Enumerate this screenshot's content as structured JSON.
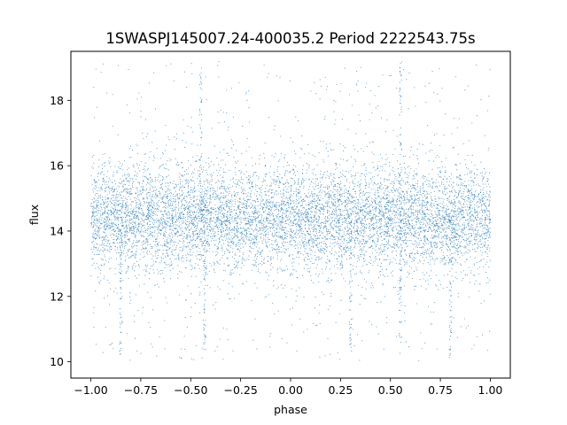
{
  "chart_data": {
    "type": "scatter",
    "title": "1SWASPJ145007.24-400035.2 Period 2222543.75s",
    "xlabel": "phase",
    "ylabel": "flux",
    "xlim": [
      -1.1,
      1.1
    ],
    "ylim": [
      9.5,
      19.5
    ],
    "x_ticks": [
      {
        "value": -1.0,
        "label": "−1.00"
      },
      {
        "value": -0.75,
        "label": "−0.75"
      },
      {
        "value": -0.5,
        "label": "−0.50"
      },
      {
        "value": -0.25,
        "label": "−0.25"
      },
      {
        "value": 0.0,
        "label": "0.00"
      },
      {
        "value": 0.25,
        "label": "0.25"
      },
      {
        "value": 0.5,
        "label": "0.50"
      },
      {
        "value": 0.75,
        "label": "0.75"
      },
      {
        "value": 1.0,
        "label": "1.00"
      }
    ],
    "y_ticks": [
      {
        "value": 10,
        "label": "10"
      },
      {
        "value": 12,
        "label": "12"
      },
      {
        "value": 14,
        "label": "14"
      },
      {
        "value": 16,
        "label": "16"
      },
      {
        "value": 18,
        "label": "18"
      }
    ],
    "grid": false,
    "series": [
      {
        "color": "#1f77b4",
        "phase_range": [
          -1.0,
          1.0
        ],
        "flux_median": 14.4,
        "flux_core_range": [
          12.8,
          16.0
        ],
        "flux_full_range": [
          10.0,
          19.2
        ],
        "spikes": [
          {
            "phase": -0.45,
            "flux_max": 19.2
          },
          {
            "phase": 0.55,
            "flux_max": 19.2
          },
          {
            "phase": -0.85,
            "flux_min": 10.1
          },
          {
            "phase": -0.43,
            "flux_min": 10.2
          },
          {
            "phase": 0.3,
            "flux_min": 10.3
          },
          {
            "phase": 0.55,
            "flux_min": 10.2
          },
          {
            "phase": 0.8,
            "flux_min": 10.1
          }
        ]
      }
    ]
  }
}
